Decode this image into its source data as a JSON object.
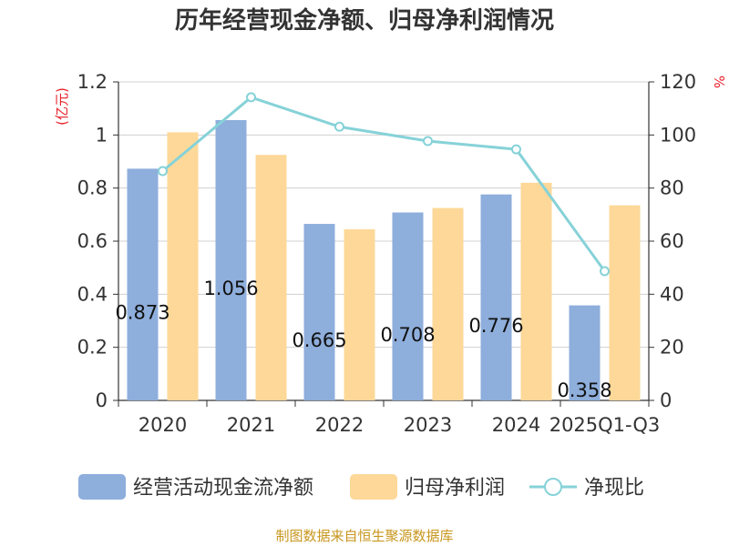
{
  "chart_data": {
    "type": "bar",
    "title": "历年经营现金净额、归母净利润情况",
    "categories": [
      "2020",
      "2021",
      "2022",
      "2023",
      "2024",
      "2025Q1-Q3"
    ],
    "series": [
      {
        "name": "经营活动现金流净额",
        "kind": "bar",
        "axis": "left",
        "color": "#8eaedc",
        "values": [
          0.873,
          1.056,
          0.665,
          0.708,
          0.776,
          0.358
        ],
        "labels": [
          "0.873",
          "1.056",
          "0.665",
          "0.708",
          "0.776",
          "0.358"
        ]
      },
      {
        "name": "归母净利润",
        "kind": "bar",
        "axis": "left",
        "color": "#fdd898",
        "values": [
          1.01,
          0.925,
          0.645,
          0.725,
          0.82,
          0.735
        ]
      },
      {
        "name": "净现比",
        "kind": "line",
        "axis": "right",
        "color": "#86d2d8",
        "values": [
          86.4,
          114.2,
          103.1,
          97.7,
          94.6,
          48.7
        ]
      }
    ],
    "left_axis": {
      "unit": "(亿元)",
      "ylim": [
        0,
        1.2
      ],
      "ticks": [
        "0",
        "0.2",
        "0.4",
        "0.6",
        "0.8",
        "1",
        "1.2"
      ]
    },
    "right_axis": {
      "unit": "%",
      "ylim": [
        0,
        120
      ],
      "ticks": [
        "0",
        "20",
        "40",
        "60",
        "80",
        "100",
        "120"
      ]
    },
    "grid": true,
    "legend_position": "bottom"
  },
  "source": "制图数据来自恒生聚源数据库"
}
